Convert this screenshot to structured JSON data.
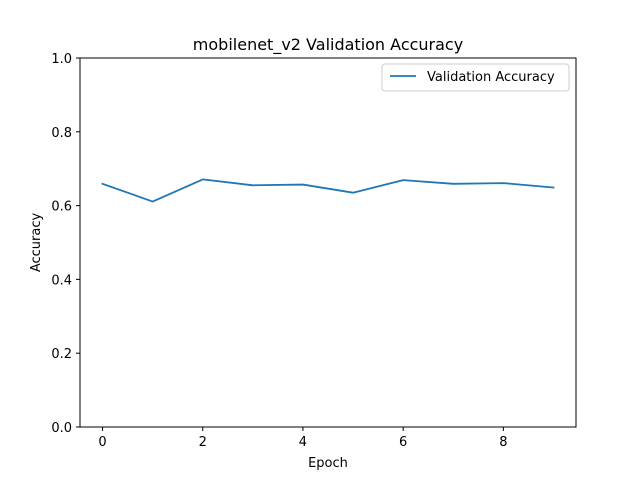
{
  "chart_data": {
    "type": "line",
    "title": "mobilenet_v2 Validation Accuracy",
    "xlabel": "Epoch",
    "ylabel": "Accuracy",
    "xlim": [
      -0.45,
      9.45
    ],
    "ylim": [
      0.0,
      1.0
    ],
    "xticks": [
      0,
      2,
      4,
      6,
      8
    ],
    "xtick_labels": [
      "0",
      "2",
      "4",
      "6",
      "8"
    ],
    "yticks": [
      0.0,
      0.2,
      0.4,
      0.6,
      0.8,
      1.0
    ],
    "ytick_labels": [
      "0.0",
      "0.2",
      "0.4",
      "0.6",
      "0.8",
      "1.0"
    ],
    "grid": false,
    "legend": {
      "position": "top-right"
    },
    "x": [
      0,
      1,
      2,
      3,
      4,
      5,
      6,
      7,
      8,
      9
    ],
    "series": [
      {
        "name": "Validation Accuracy",
        "color": "#1f77b4",
        "values": [
          0.659,
          0.611,
          0.671,
          0.655,
          0.657,
          0.635,
          0.669,
          0.659,
          0.661,
          0.649
        ]
      }
    ]
  }
}
